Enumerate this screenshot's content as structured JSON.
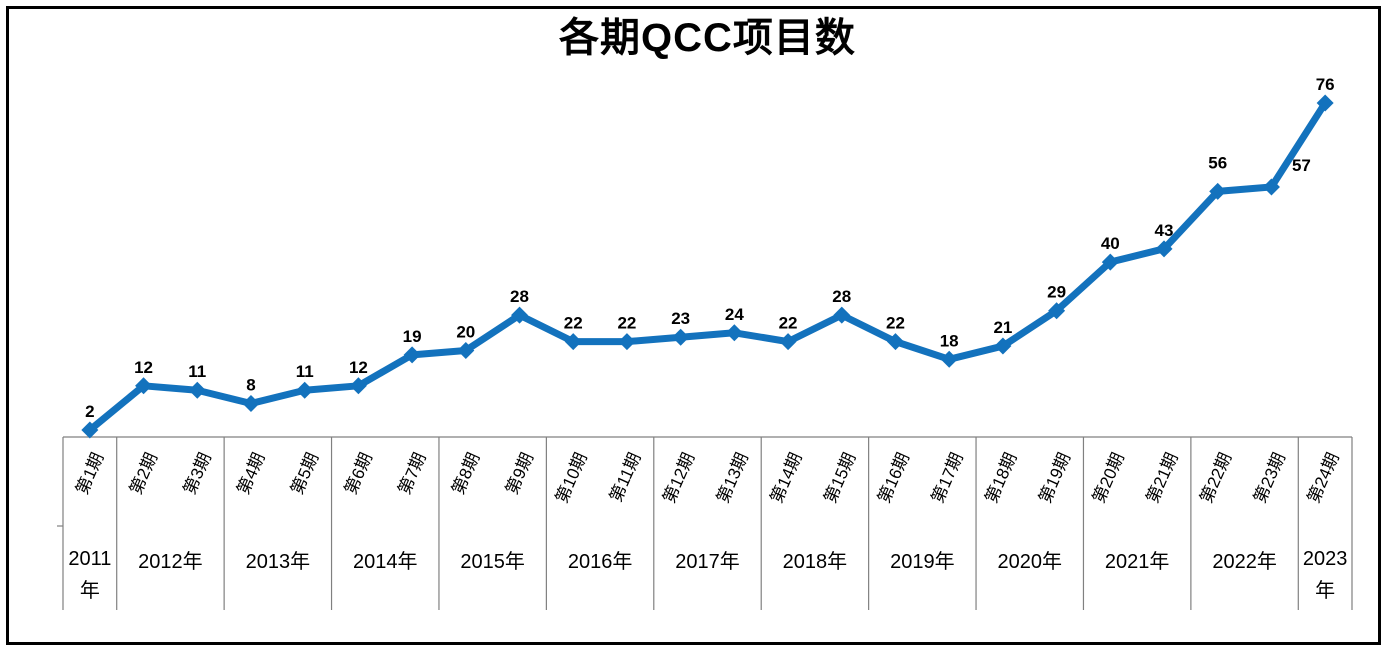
{
  "chart_data": {
    "type": "line",
    "title": "各期QCC项目数",
    "categories": [
      "第1期",
      "第2期",
      "第3期",
      "第4期",
      "第5期",
      "第6期",
      "第7期",
      "第8期",
      "第9期",
      "第10期",
      "第11期",
      "第12期",
      "第13期",
      "第14期",
      "第15期",
      "第16期",
      "第17期",
      "第18期",
      "第19期",
      "第20期",
      "第21期",
      "第22期",
      "第23期",
      "第24期"
    ],
    "values": [
      2,
      12,
      11,
      8,
      11,
      12,
      19,
      20,
      28,
      22,
      22,
      23,
      24,
      22,
      28,
      22,
      18,
      21,
      29,
      40,
      43,
      56,
      57,
      76
    ],
    "year_groups": [
      {
        "label": "2011年",
        "span": 1
      },
      {
        "label": "2012年",
        "span": 2
      },
      {
        "label": "2013年",
        "span": 2
      },
      {
        "label": "2014年",
        "span": 2
      },
      {
        "label": "2015年",
        "span": 2
      },
      {
        "label": "2016年",
        "span": 2
      },
      {
        "label": "2017年",
        "span": 2
      },
      {
        "label": "2018年",
        "span": 2
      },
      {
        "label": "2019年",
        "span": 2
      },
      {
        "label": "2020年",
        "span": 2
      },
      {
        "label": "2021年",
        "span": 2
      },
      {
        "label": "2022年",
        "span": 2
      },
      {
        "label": "2023年",
        "span": 1
      }
    ],
    "data_labels_shown": true,
    "ylim": [
      0,
      80
    ],
    "xlabel": "",
    "ylabel": "",
    "legend": "none",
    "gridlines": "off",
    "marker_shape": "diamond",
    "colors": {
      "line": "#1372BD",
      "marker": "#1372BD",
      "value_label": "#000000",
      "axis_line": "#808080",
      "axis_text": "#000000",
      "title_text": "#000000",
      "frame_border": "#000000",
      "background": "#FFFFFF"
    },
    "label_offsets": {
      "21": [
        0,
        -10
      ],
      "22": [
        30,
        -3
      ]
    }
  }
}
